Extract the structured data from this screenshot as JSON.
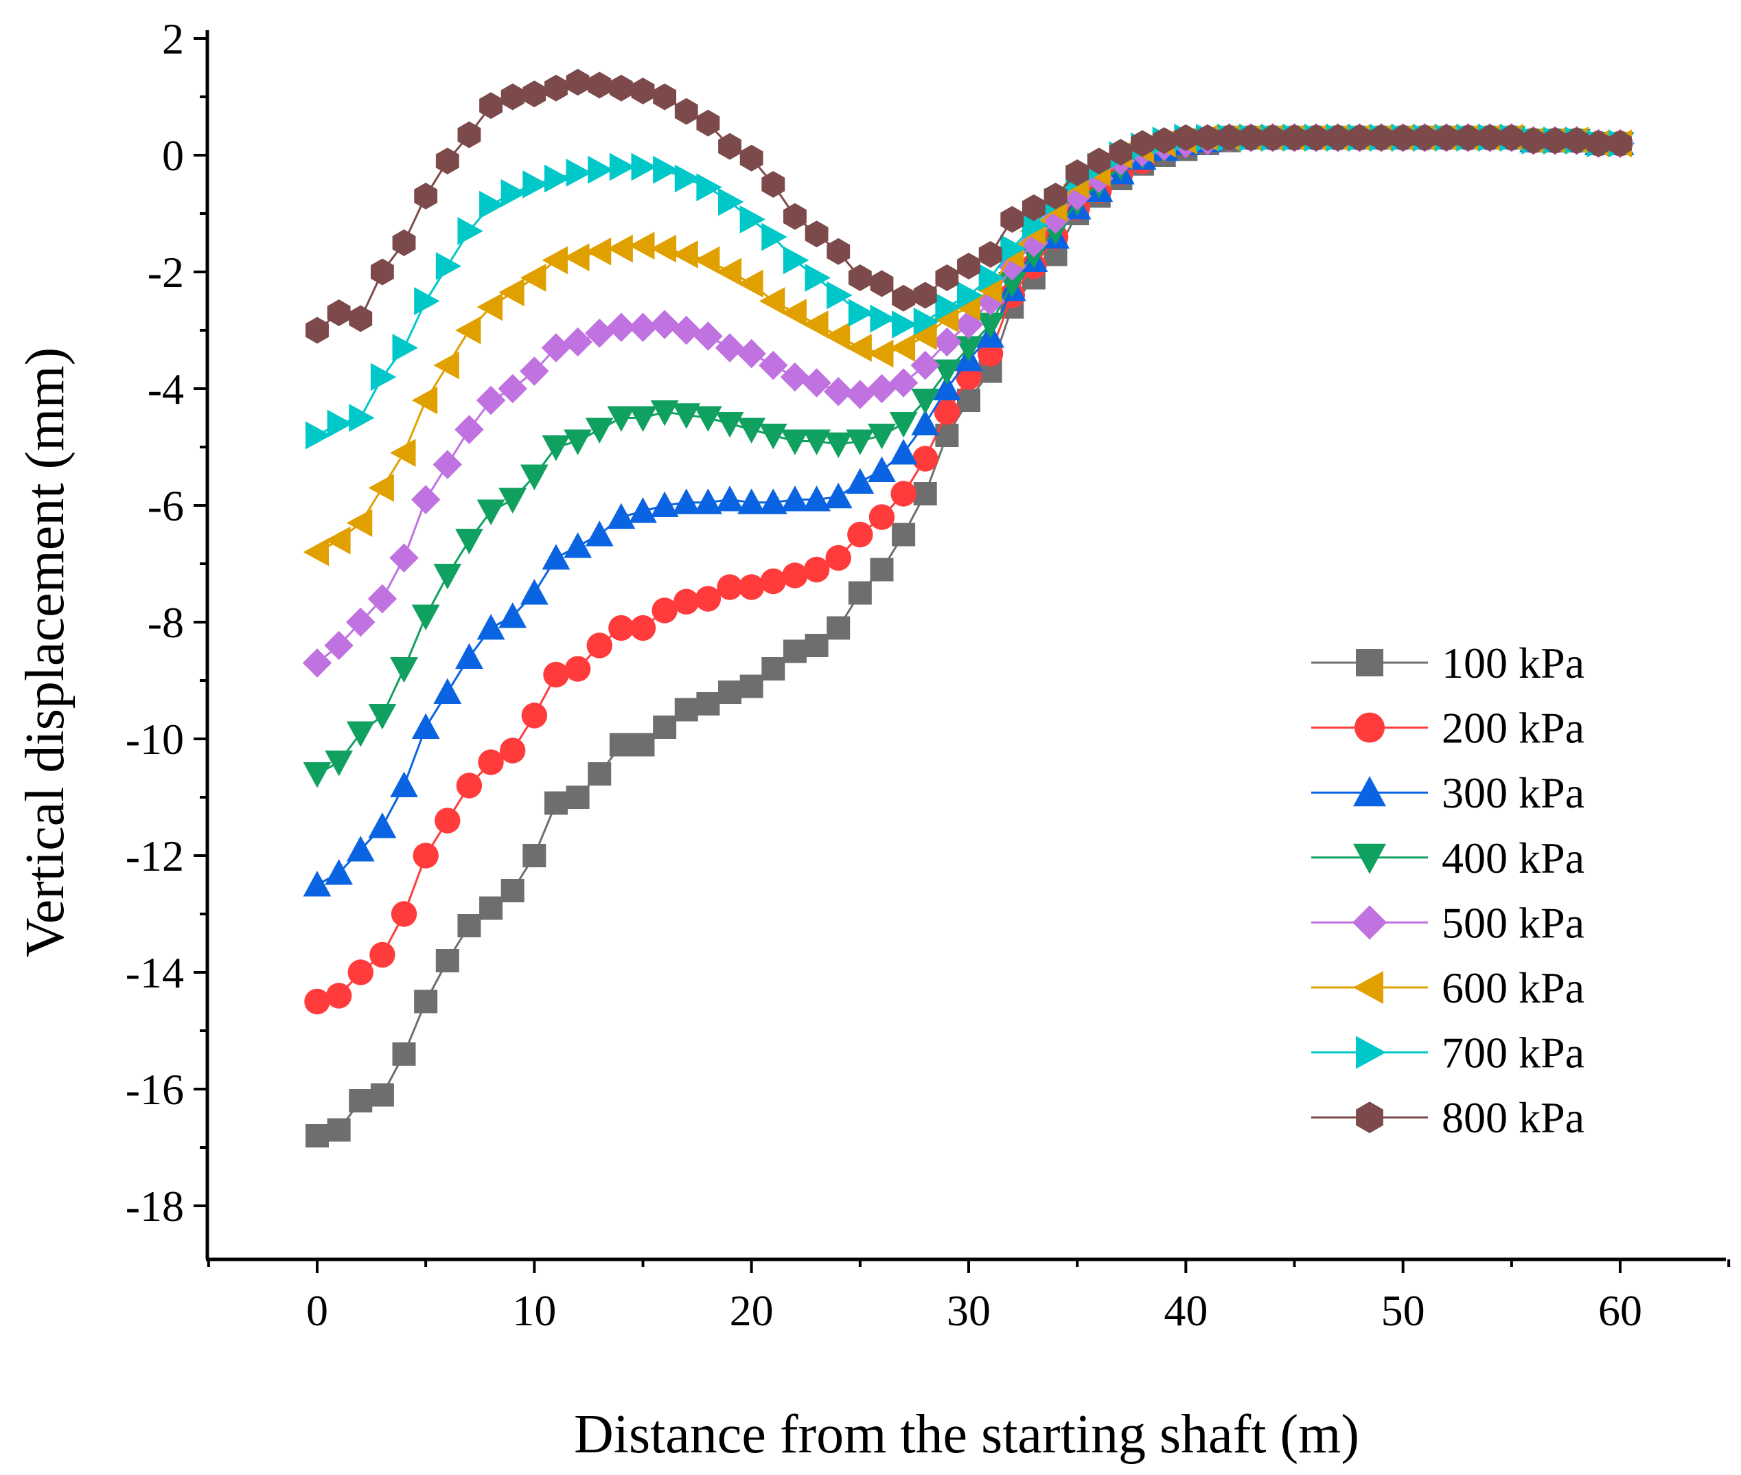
{
  "chart_data": {
    "type": "line",
    "title": "",
    "xlabel": "Distance from the starting shaft (m)",
    "ylabel": "Vertical displacement (mm)",
    "xlim": [
      -5,
      65
    ],
    "ylim": [
      -19,
      2
    ],
    "xticks": [
      0,
      10,
      20,
      30,
      40,
      50,
      60
    ],
    "yticks": [
      2,
      0,
      -2,
      -4,
      -6,
      -8,
      -10,
      -12,
      -14,
      -16,
      -18
    ],
    "xtick_labels": [
      "0",
      "10",
      "20",
      "30",
      "40",
      "50",
      "60"
    ],
    "ytick_labels": [
      "2",
      "0",
      "-2",
      "-4",
      "-6",
      "-8",
      "-10",
      "-12",
      "-14",
      "-16",
      "-18"
    ],
    "grid": false,
    "legend_position": "lower-right",
    "x": [
      0,
      1,
      2,
      3,
      4,
      5,
      6,
      7,
      8,
      9,
      10,
      11,
      12,
      13,
      14,
      15,
      16,
      17,
      18,
      19,
      20,
      21,
      22,
      23,
      24,
      25,
      26,
      27,
      28,
      29,
      30,
      31,
      32,
      33,
      34,
      35,
      36,
      37,
      38,
      39,
      40,
      41,
      42,
      43,
      44,
      45,
      46,
      47,
      48,
      49,
      50,
      51,
      52,
      53,
      54,
      55,
      56,
      57,
      58,
      59,
      60
    ],
    "series": [
      {
        "name": "100 kPa",
        "color": "#6e6e6e",
        "marker": "square",
        "values": [
          -16.8,
          -16.7,
          -16.2,
          -16.1,
          -15.4,
          -14.5,
          -13.8,
          -13.2,
          -12.9,
          -12.6,
          -12.0,
          -11.1,
          -11.0,
          -10.6,
          -10.1,
          -10.1,
          -9.8,
          -9.5,
          -9.4,
          -9.2,
          -9.1,
          -8.8,
          -8.5,
          -8.4,
          -8.1,
          -7.5,
          -7.1,
          -6.5,
          -5.8,
          -4.8,
          -4.2,
          -3.7,
          -2.6,
          -2.1,
          -1.7,
          -1.0,
          -0.7,
          -0.4,
          -0.15,
          0.0,
          0.1,
          0.2,
          0.25,
          0.3,
          0.3,
          0.3,
          0.3,
          0.3,
          0.3,
          0.3,
          0.3,
          0.3,
          0.3,
          0.3,
          0.3,
          0.3,
          0.25,
          0.25,
          0.25,
          0.2,
          0.2
        ]
      },
      {
        "name": "200 kPa",
        "color": "#ff3b3b",
        "marker": "circle",
        "values": [
          -14.5,
          -14.4,
          -14.0,
          -13.7,
          -13.0,
          -12.0,
          -11.4,
          -10.8,
          -10.4,
          -10.2,
          -9.6,
          -8.9,
          -8.8,
          -8.4,
          -8.1,
          -8.1,
          -7.8,
          -7.65,
          -7.6,
          -7.4,
          -7.4,
          -7.3,
          -7.2,
          -7.1,
          -6.9,
          -6.5,
          -6.2,
          -5.8,
          -5.2,
          -4.4,
          -3.8,
          -3.4,
          -2.4,
          -1.9,
          -1.4,
          -0.9,
          -0.6,
          -0.3,
          -0.1,
          0.1,
          0.2,
          0.25,
          0.3,
          0.3,
          0.3,
          0.3,
          0.3,
          0.3,
          0.3,
          0.3,
          0.3,
          0.3,
          0.3,
          0.3,
          0.3,
          0.3,
          0.25,
          0.25,
          0.25,
          0.2,
          0.2
        ]
      },
      {
        "name": "300 kPa",
        "color": "#0a64e1",
        "marker": "triangle-up",
        "values": [
          -12.5,
          -12.3,
          -11.9,
          -11.5,
          -10.8,
          -9.8,
          -9.2,
          -8.6,
          -8.1,
          -7.9,
          -7.5,
          -6.9,
          -6.7,
          -6.5,
          -6.2,
          -6.1,
          -6.0,
          -5.95,
          -5.95,
          -5.9,
          -5.95,
          -5.95,
          -5.9,
          -5.9,
          -5.85,
          -5.6,
          -5.4,
          -5.1,
          -4.6,
          -4.0,
          -3.5,
          -3.1,
          -2.3,
          -1.8,
          -1.4,
          -0.9,
          -0.6,
          -0.3,
          -0.05,
          0.1,
          0.2,
          0.25,
          0.3,
          0.3,
          0.3,
          0.3,
          0.3,
          0.3,
          0.3,
          0.3,
          0.3,
          0.3,
          0.3,
          0.3,
          0.3,
          0.3,
          0.25,
          0.25,
          0.25,
          0.2,
          0.2
        ]
      },
      {
        "name": "400 kPa",
        "color": "#10a060",
        "marker": "triangle-down",
        "values": [
          -10.6,
          -10.4,
          -9.9,
          -9.6,
          -8.8,
          -7.9,
          -7.2,
          -6.6,
          -6.1,
          -5.9,
          -5.5,
          -5.0,
          -4.9,
          -4.7,
          -4.5,
          -4.5,
          -4.4,
          -4.45,
          -4.5,
          -4.6,
          -4.7,
          -4.8,
          -4.9,
          -4.9,
          -4.95,
          -4.9,
          -4.8,
          -4.6,
          -4.2,
          -3.7,
          -3.3,
          -2.9,
          -2.2,
          -1.7,
          -1.3,
          -0.8,
          -0.5,
          -0.2,
          0.0,
          0.1,
          0.2,
          0.25,
          0.3,
          0.3,
          0.3,
          0.3,
          0.3,
          0.3,
          0.3,
          0.3,
          0.3,
          0.3,
          0.3,
          0.3,
          0.3,
          0.3,
          0.25,
          0.25,
          0.25,
          0.2,
          0.2
        ]
      },
      {
        "name": "500 kPa",
        "color": "#c072e0",
        "marker": "diamond",
        "values": [
          -8.7,
          -8.4,
          -8.0,
          -7.6,
          -6.9,
          -5.9,
          -5.3,
          -4.7,
          -4.2,
          -4.0,
          -3.7,
          -3.3,
          -3.2,
          -3.05,
          -2.95,
          -2.95,
          -2.9,
          -3.0,
          -3.1,
          -3.3,
          -3.4,
          -3.6,
          -3.8,
          -3.9,
          -4.05,
          -4.1,
          -4.0,
          -3.9,
          -3.6,
          -3.2,
          -2.9,
          -2.5,
          -1.9,
          -1.5,
          -1.1,
          -0.7,
          -0.4,
          -0.1,
          0.05,
          0.15,
          0.2,
          0.25,
          0.3,
          0.3,
          0.3,
          0.3,
          0.3,
          0.3,
          0.3,
          0.3,
          0.3,
          0.3,
          0.3,
          0.3,
          0.3,
          0.3,
          0.25,
          0.25,
          0.25,
          0.2,
          0.2
        ]
      },
      {
        "name": "600 kPa",
        "color": "#e0a000",
        "marker": "triangle-left",
        "values": [
          -6.8,
          -6.6,
          -6.3,
          -5.7,
          -5.1,
          -4.2,
          -3.6,
          -3.0,
          -2.6,
          -2.35,
          -2.1,
          -1.8,
          -1.75,
          -1.65,
          -1.6,
          -1.55,
          -1.6,
          -1.7,
          -1.8,
          -2.0,
          -2.2,
          -2.5,
          -2.7,
          -2.9,
          -3.1,
          -3.3,
          -3.4,
          -3.3,
          -3.1,
          -2.8,
          -2.6,
          -2.3,
          -1.7,
          -1.3,
          -0.9,
          -0.5,
          -0.3,
          0.0,
          0.1,
          0.2,
          0.25,
          0.3,
          0.3,
          0.3,
          0.3,
          0.3,
          0.3,
          0.3,
          0.3,
          0.3,
          0.3,
          0.3,
          0.3,
          0.3,
          0.3,
          0.3,
          0.25,
          0.25,
          0.25,
          0.2,
          0.2
        ]
      },
      {
        "name": "700 kPa",
        "color": "#00c8c8",
        "marker": "triangle-right",
        "values": [
          -4.8,
          -4.6,
          -4.5,
          -3.8,
          -3.3,
          -2.5,
          -1.9,
          -1.3,
          -0.85,
          -0.65,
          -0.5,
          -0.4,
          -0.3,
          -0.25,
          -0.2,
          -0.2,
          -0.25,
          -0.4,
          -0.55,
          -0.8,
          -1.1,
          -1.4,
          -1.8,
          -2.1,
          -2.4,
          -2.7,
          -2.8,
          -2.9,
          -2.85,
          -2.6,
          -2.4,
          -2.1,
          -1.6,
          -1.2,
          -0.8,
          -0.4,
          -0.2,
          0.0,
          0.15,
          0.25,
          0.3,
          0.3,
          0.3,
          0.3,
          0.3,
          0.3,
          0.3,
          0.3,
          0.3,
          0.3,
          0.3,
          0.3,
          0.3,
          0.3,
          0.3,
          0.3,
          0.25,
          0.25,
          0.25,
          0.2,
          0.2
        ]
      },
      {
        "name": "800 kPa",
        "color": "#7c4a4a",
        "marker": "hexagon",
        "values": [
          -3.0,
          -2.7,
          -2.8,
          -2.0,
          -1.5,
          -0.7,
          -0.1,
          0.35,
          0.85,
          1.0,
          1.05,
          1.15,
          1.25,
          1.2,
          1.15,
          1.1,
          1.0,
          0.75,
          0.55,
          0.15,
          -0.05,
          -0.5,
          -1.05,
          -1.35,
          -1.65,
          -2.1,
          -2.2,
          -2.45,
          -2.4,
          -2.1,
          -1.9,
          -1.7,
          -1.1,
          -0.9,
          -0.7,
          -0.3,
          -0.1,
          0.05,
          0.2,
          0.25,
          0.3,
          0.3,
          0.3,
          0.3,
          0.3,
          0.3,
          0.3,
          0.3,
          0.3,
          0.3,
          0.3,
          0.3,
          0.3,
          0.3,
          0.3,
          0.3,
          0.25,
          0.25,
          0.25,
          0.2,
          0.2
        ]
      }
    ]
  }
}
